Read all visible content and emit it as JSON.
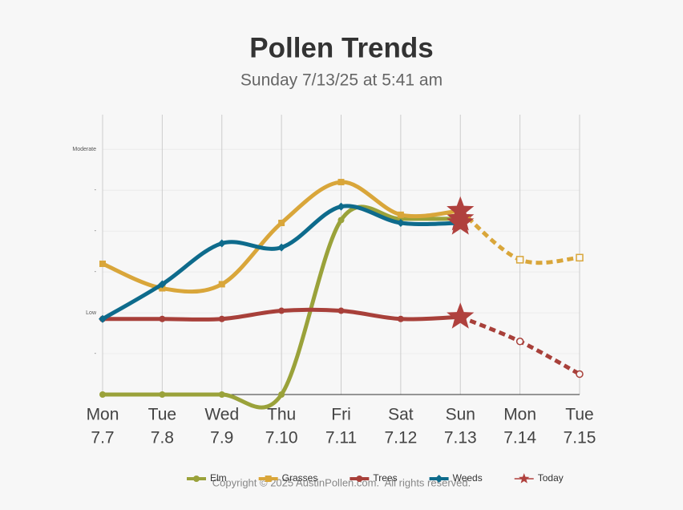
{
  "chart_data": {
    "type": "line",
    "title": "Pollen Trends",
    "subtitle": "Sunday 7/13/25 at 5:41 am",
    "categories": [
      "Mon",
      "Tue",
      "Wed",
      "Thu",
      "Fri",
      "Sat",
      "Sun",
      "Mon",
      "Tue"
    ],
    "category_dates": [
      "7.7",
      "7.8",
      "7.9",
      "7.10",
      "7.11",
      "7.12",
      "7.13",
      "7.14",
      "7.15"
    ],
    "ylim": [
      0,
      6.85
    ],
    "yticks": [
      {
        "value": 1,
        "label": "-"
      },
      {
        "value": 2,
        "label": "Low"
      },
      {
        "value": 3,
        "label": "-"
      },
      {
        "value": 4,
        "label": "-"
      },
      {
        "value": 5,
        "label": "-"
      },
      {
        "value": 6,
        "label": "Moderate"
      }
    ],
    "grid": true,
    "series": [
      {
        "name": "Elm",
        "color": "#9aa23a",
        "marker": "circle",
        "values": [
          0,
          0,
          0,
          0,
          4.27,
          4.3,
          4.3,
          null,
          null
        ]
      },
      {
        "name": "Grasses",
        "color": "#d9a63a",
        "marker": "square",
        "values": [
          3.2,
          2.6,
          2.7,
          4.2,
          5.2,
          4.4,
          4.5,
          3.3,
          3.35
        ]
      },
      {
        "name": "Trees",
        "color": "#a8403a",
        "marker": "circle",
        "values": [
          1.85,
          1.85,
          1.85,
          2.05,
          2.05,
          1.85,
          1.9,
          1.3,
          0.5
        ]
      },
      {
        "name": "Weeds",
        "color": "#0e6b8c",
        "marker": "diamond",
        "values": [
          1.85,
          2.7,
          3.7,
          3.6,
          4.6,
          4.2,
          4.2,
          null,
          null
        ]
      }
    ],
    "today": {
      "name": "Today",
      "color": "#b0413e",
      "index": 6
    },
    "legend": "bottom",
    "copyright": "Copyright © 2025 AustinPollen.com.  All rights reserved."
  }
}
